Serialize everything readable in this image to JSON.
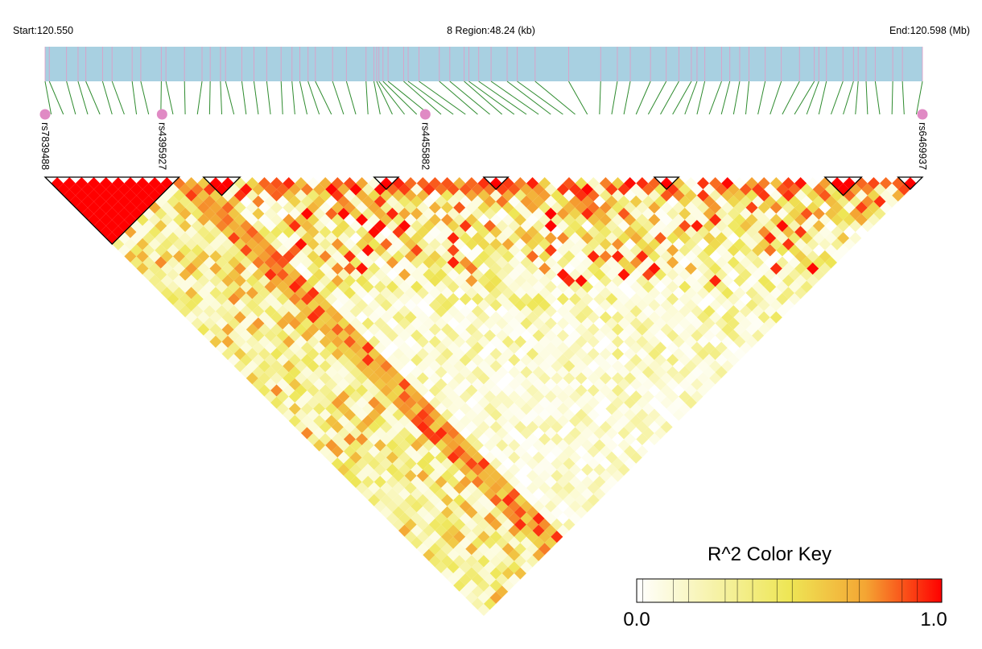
{
  "header": {
    "start_label": "Start:120.550",
    "region_label": "8 Region:48.24 (kb)",
    "end_label": "End:120.598 (Mb)"
  },
  "colors": {
    "track": "#a8d0e1",
    "snp_tick": "#e39ac4",
    "connector": "#2e8b2e",
    "marker": "#e08ac4",
    "block_outline": "#000000",
    "key_low": "#ffffff",
    "key_mid": "#eee655",
    "key_high": "#ff0000"
  },
  "chart_data": {
    "type": "heatmap",
    "subtype": "linkage disequilibrium triangle (R^2)",
    "region": {
      "chromosome": "8",
      "start_mb": 120.55,
      "end_mb": 120.598,
      "length_kb": 48.24
    },
    "labelled_snps": [
      {
        "name": "rs7839488",
        "position_mb": 120.55
      },
      {
        "name": "rs4395927",
        "position_mb": 120.5564
      },
      {
        "name": "rs4455882",
        "position_mb": 120.5708
      },
      {
        "name": "rs6469937",
        "position_mb": 120.598
      }
    ],
    "snp_count": 72,
    "ld_blocks_snp_index": [
      [
        0,
        10
      ],
      [
        13,
        15
      ],
      [
        27,
        28
      ],
      [
        36,
        37
      ],
      [
        50,
        51
      ],
      [
        64,
        66
      ],
      [
        70,
        71
      ]
    ],
    "r2_scale": {
      "min": 0.0,
      "max": 1.0
    },
    "color_key": {
      "title": "R^2 Color Key",
      "min_label": "0.0",
      "max_label": "1.0",
      "stops": [
        {
          "value": 0.0,
          "color": "#ffffff"
        },
        {
          "value": 0.5,
          "color": "#eee655"
        },
        {
          "value": 0.75,
          "color": "#f4a533"
        },
        {
          "value": 1.0,
          "color": "#ff0000"
        }
      ]
    }
  }
}
